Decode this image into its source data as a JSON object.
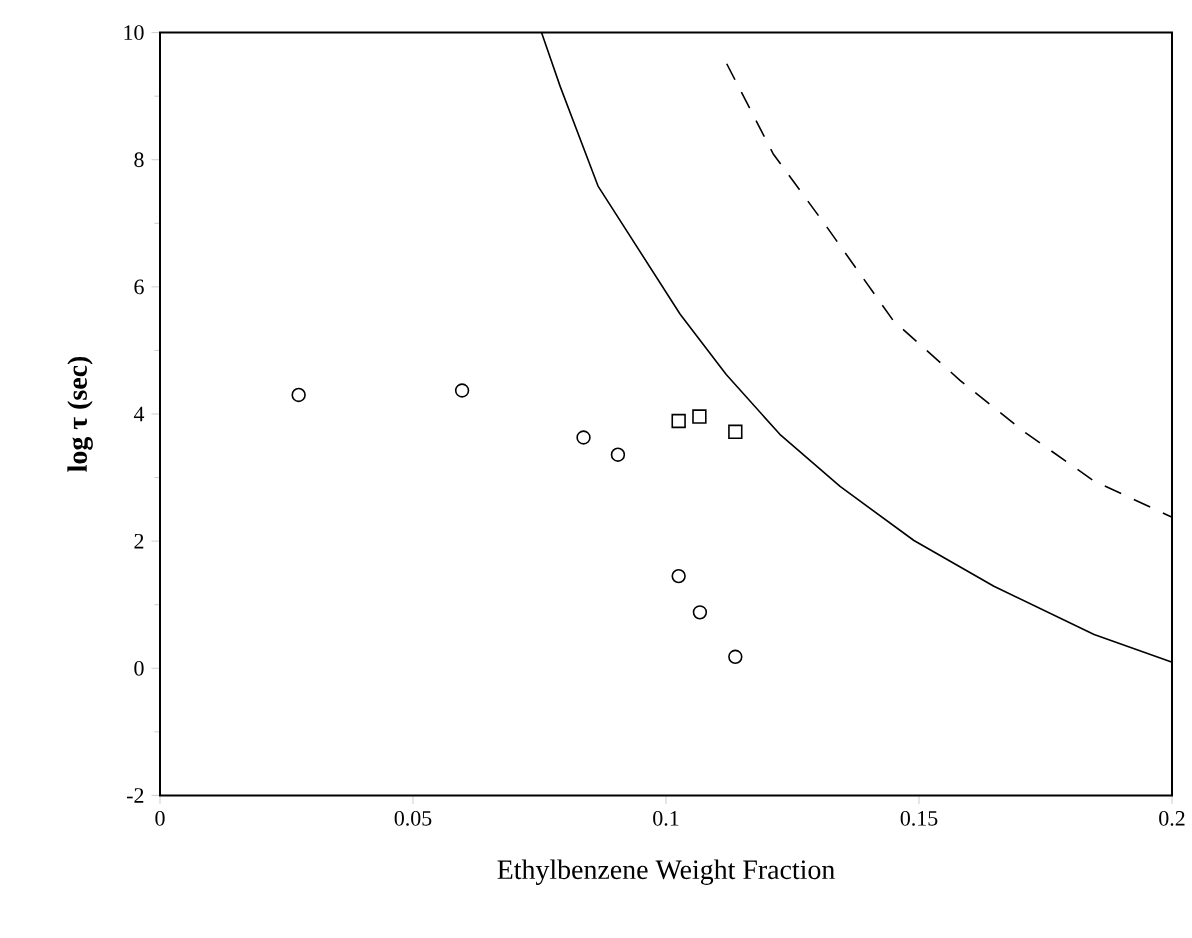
{
  "chart_data": {
    "type": "scatter",
    "xlabel": "Ethylbenzene Weight Fraction",
    "ylabel": "log τ (sec)",
    "xlim": [
      0,
      0.2
    ],
    "ylim": [
      -2,
      10
    ],
    "xticks": [
      0,
      0.05,
      0.1,
      0.15,
      0.2
    ],
    "yticks": [
      -2,
      0,
      2,
      4,
      6,
      8,
      10
    ],
    "grid": false,
    "series": [
      {
        "marker": "circle",
        "color": "#000000",
        "x": [
          0.0274,
          0.0597,
          0.0837,
          0.0905,
          0.1025,
          0.1067,
          0.1137
        ],
        "values": [
          4.3,
          4.37,
          3.63,
          3.36,
          1.45,
          0.88,
          0.18
        ]
      },
      {
        "marker": "square",
        "color": "#000000",
        "x": [
          0.1025,
          0.1066,
          0.1137
        ],
        "values": [
          3.89,
          3.96,
          3.72
        ]
      },
      {
        "type": "line",
        "line_style": "solid",
        "color": "#000000",
        "x": [
          0.0754,
          0.0791,
          0.0866,
          0.1028,
          0.1119,
          0.1225,
          0.1344,
          0.149,
          0.1648,
          0.1846,
          0.1999
        ],
        "values": [
          10,
          9.15,
          7.58,
          5.57,
          4.62,
          3.68,
          2.86,
          2.01,
          1.29,
          0.53,
          0.1
        ]
      },
      {
        "type": "line",
        "line_style": "dashed",
        "color": "#000000",
        "x": [
          0.112,
          0.1212,
          0.1318,
          0.1449,
          0.1581,
          0.1713,
          0.1845,
          0.1999
        ],
        "values": [
          9.51,
          8.09,
          6.94,
          5.47,
          4.53,
          3.69,
          2.95,
          2.38
        ]
      }
    ]
  }
}
